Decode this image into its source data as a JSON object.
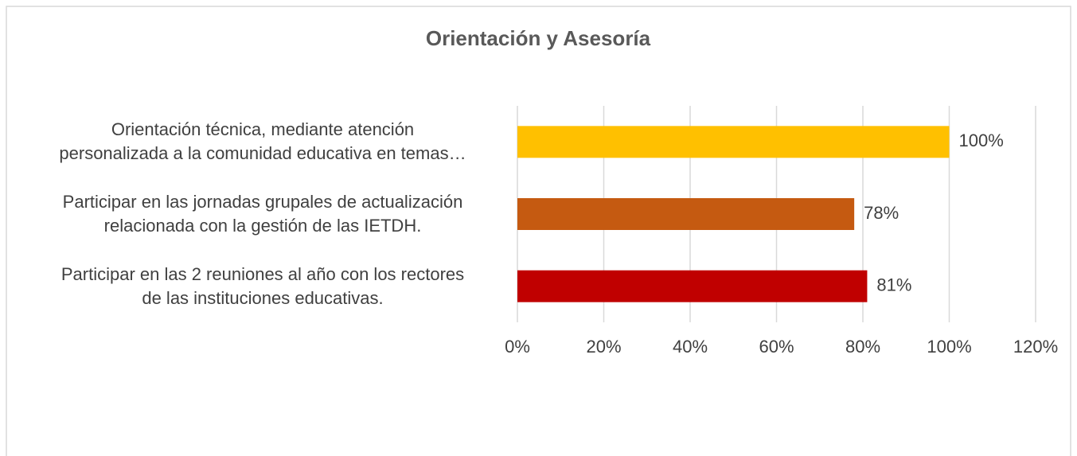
{
  "chart_data": {
    "type": "bar",
    "orientation": "horizontal",
    "title": "Orientación y Asesoría",
    "categories": [
      "Orientación técnica, mediante atención\npersonalizada a la comunidad educativa en temas…",
      "Participar en las jornadas grupales de actualización\nrelacionada con la gestión de las IETDH.",
      "Participar en las 2 reuniones al año con los rectores\nde las instituciones educativas."
    ],
    "values": [
      100,
      78,
      81
    ],
    "value_labels": [
      "100%",
      "78%",
      "81%"
    ],
    "colors": [
      "#ffc000",
      "#c55a11",
      "#c00000"
    ],
    "xlim": [
      0,
      120
    ],
    "xticks": [
      {
        "value": 0,
        "label": "0%"
      },
      {
        "value": 20,
        "label": "20%"
      },
      {
        "value": 40,
        "label": "40%"
      },
      {
        "value": 60,
        "label": "60%"
      },
      {
        "value": 80,
        "label": "80%"
      },
      {
        "value": 100,
        "label": "100%"
      },
      {
        "value": 120,
        "label": "120%"
      }
    ],
    "grid": true
  }
}
